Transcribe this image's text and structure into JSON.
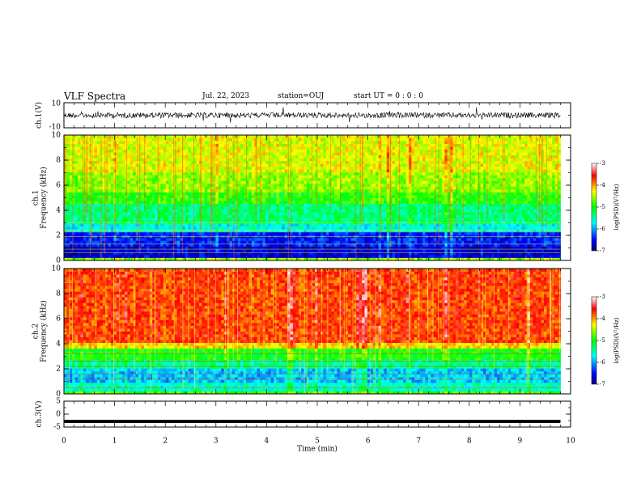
{
  "header": {
    "title": "VLF Spectra",
    "date": "Jul. 22, 2023",
    "station": "station=OUJ",
    "start": "start UT =  0 : 0  : 0"
  },
  "chart_data": [
    {
      "type": "line",
      "panel": "ch1-waveform",
      "ylabel": "ch.1(V)",
      "ylim": [
        -10,
        10
      ],
      "yticks": [
        "10",
        "-10"
      ],
      "xlim": [
        0,
        10
      ],
      "line_color": "#000000",
      "series": [
        {
          "x": [
            0,
            9.8
          ],
          "baseline": 0,
          "range": [
            -3,
            3
          ]
        }
      ]
    },
    {
      "type": "heatmap",
      "panel": "ch1-spectrogram",
      "ylabel": "ch.1\nFrequency (kHz)",
      "ylim": [
        0,
        10
      ],
      "yticks": [
        "0",
        "2",
        "4",
        "6",
        "8",
        "10"
      ],
      "xlim": [
        0,
        10
      ],
      "data_extent_min": 9.8,
      "colorbar": {
        "label": "log(PSD)(V²/Hz)",
        "range": [
          -7,
          -3
        ],
        "ticks": [
          "-3",
          "-4",
          "-5",
          "-6",
          "-7"
        ]
      }
    },
    {
      "type": "heatmap",
      "panel": "ch2-spectrogram",
      "ylabel": "ch.2\nFrequency (kHz)",
      "ylim": [
        0,
        10
      ],
      "yticks": [
        "0",
        "2",
        "4",
        "6",
        "8",
        "10"
      ],
      "xlim": [
        0,
        10
      ],
      "data_extent_min": 9.8,
      "colorbar": {
        "label": "log(PSD)(V²/Hz)",
        "range": [
          -7,
          -3
        ],
        "ticks": [
          "-3",
          "-4",
          "-5",
          "-6",
          "-7"
        ]
      }
    },
    {
      "type": "line",
      "panel": "ch3-waveform",
      "ylabel": "ch.3(V)",
      "ylim": [
        -5,
        5
      ],
      "yticks": [
        "5",
        "0",
        "-5"
      ],
      "xlim": [
        0,
        10
      ],
      "xlabel": "Time (min)",
      "xticks": [
        "0",
        "1",
        "2",
        "3",
        "4",
        "5",
        "6",
        "7",
        "8",
        "9",
        "10"
      ],
      "series": [
        {
          "x": [
            0,
            9.8
          ],
          "y": [
            -2.8,
            -2.8
          ]
        }
      ]
    }
  ]
}
